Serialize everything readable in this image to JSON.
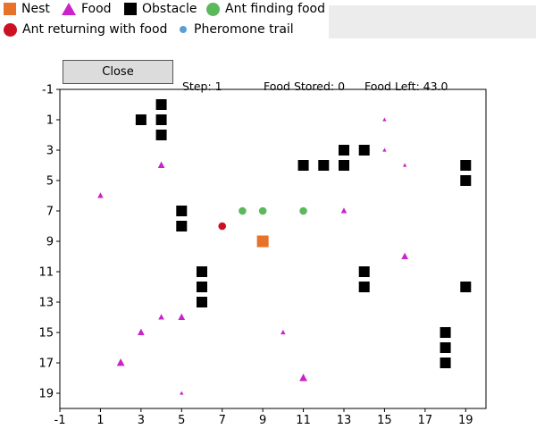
{
  "legend": {
    "nest": "Nest",
    "food": "Food",
    "obstacle": "Obstacle",
    "ant_finding": "Ant finding food",
    "ant_returning": "Ant returning with food",
    "pheromone": "Pheromone trail"
  },
  "controls": {
    "close_label": "Close"
  },
  "status": {
    "step": "Step: 1",
    "food_stored": "Food Stored: 0",
    "food_left": "Food Left: 43.0"
  },
  "colors": {
    "nest": "#e8722a",
    "food": "#cc22cc",
    "obstacle": "#000000",
    "ant_finding": "#5cb85c",
    "ant_returning": "#cc1122",
    "pheromone": "#5a9fd0"
  },
  "chart_data": {
    "type": "scatter",
    "xlim": [
      -1,
      20
    ],
    "ylim": [
      20,
      -1
    ],
    "y_inverted": true,
    "x_ticks": [
      "-1",
      "1",
      "3",
      "5",
      "7",
      "9",
      "11",
      "13",
      "15",
      "17",
      "19"
    ],
    "y_ticks": [
      "-1",
      "1",
      "3",
      "5",
      "7",
      "9",
      "11",
      "13",
      "15",
      "17",
      "19"
    ],
    "grid": false,
    "series": [
      {
        "name": "Nest",
        "marker": "square",
        "points": [
          [
            9,
            9
          ]
        ]
      },
      {
        "name": "Food",
        "marker": "triangle",
        "points": [
          [
            15,
            1,
            4
          ],
          [
            4,
            4,
            7
          ],
          [
            15,
            3,
            4
          ],
          [
            16,
            4,
            4
          ],
          [
            1,
            6,
            6
          ],
          [
            13,
            7,
            6
          ],
          [
            16,
            10,
            7
          ],
          [
            4,
            14,
            6
          ],
          [
            5,
            14,
            7
          ],
          [
            3,
            15,
            7
          ],
          [
            10,
            15,
            5
          ],
          [
            2,
            17,
            8
          ],
          [
            11,
            18,
            8
          ],
          [
            5,
            19,
            4
          ]
        ]
      },
      {
        "name": "Obstacle",
        "marker": "square",
        "points": [
          [
            4,
            0
          ],
          [
            3,
            1
          ],
          [
            4,
            1
          ],
          [
            4,
            2
          ],
          [
            13,
            3
          ],
          [
            14,
            3
          ],
          [
            11,
            4
          ],
          [
            12,
            4
          ],
          [
            13,
            4
          ],
          [
            19,
            4
          ],
          [
            19,
            5
          ],
          [
            5,
            7
          ],
          [
            5,
            8
          ],
          [
            6,
            11
          ],
          [
            14,
            11
          ],
          [
            6,
            12
          ],
          [
            14,
            12
          ],
          [
            19,
            12
          ],
          [
            6,
            13
          ],
          [
            18,
            15
          ],
          [
            18,
            16
          ],
          [
            18,
            17
          ]
        ]
      },
      {
        "name": "Ant finding food",
        "marker": "circle",
        "points": [
          [
            8,
            7
          ],
          [
            9,
            7
          ],
          [
            11,
            7
          ]
        ]
      },
      {
        "name": "Ant returning with food",
        "marker": "circle",
        "points": [
          [
            7,
            8
          ]
        ]
      },
      {
        "name": "Pheromone trail",
        "marker": "circle",
        "points": []
      }
    ]
  }
}
